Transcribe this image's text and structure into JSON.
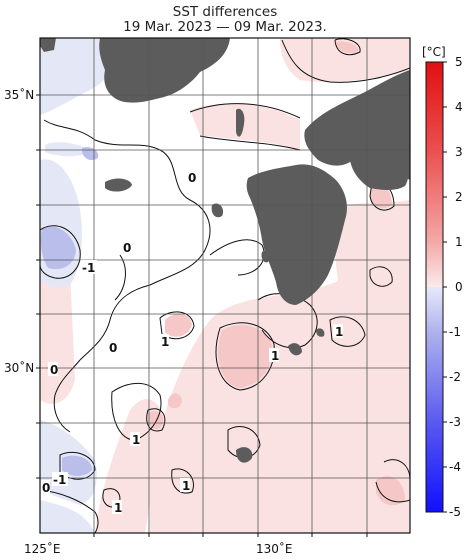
{
  "title": "SST differences",
  "subtitle": "19 Mar. 2023 — 09 Mar. 2023.",
  "axes": {
    "lat_labels": [
      "35˚N",
      "30˚N"
    ],
    "lon_labels": [
      "125˚E",
      "130˚E"
    ]
  },
  "colorbar": {
    "unit": "[°C]",
    "ticks": [
      "5",
      "4",
      "3",
      "2",
      "1",
      "0",
      "-1",
      "-2",
      "-3",
      "-4",
      "-5"
    ],
    "range": [
      -5,
      5
    ],
    "colors": [
      "#1010ff",
      "#3d3dff",
      "#6a6af0",
      "#9999ee",
      "#c4c4f2",
      "#e6e6fa",
      "#fbe6e6",
      "#f7c4c4",
      "#f29a9a",
      "#ee6a6a",
      "#e83a3a",
      "#e21010"
    ]
  },
  "contour_labels": [
    "0",
    "0",
    "-1",
    "0",
    "1",
    "1",
    "1",
    "1",
    "0",
    "-1",
    "0",
    "1",
    "1"
  ],
  "colors": {
    "land": "#5c5c5c",
    "warm_light": "#fbe2e2",
    "warm_mid": "#f6c7c7",
    "cool_light": "#e4e8f6",
    "cool_mid": "#b9bfea",
    "grid": "#555555"
  }
}
